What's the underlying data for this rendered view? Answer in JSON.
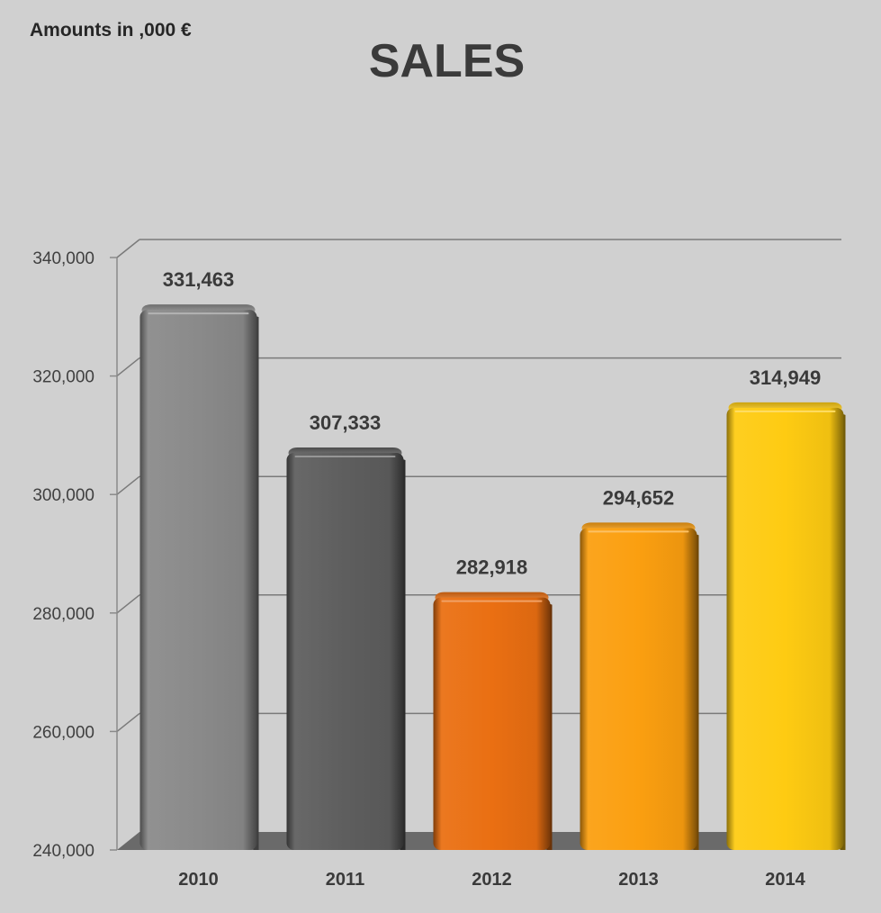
{
  "chart_data": {
    "type": "bar",
    "title": "SALES",
    "subtitle": "Amounts in ,000 €",
    "xlabel": "",
    "ylabel": "",
    "categories": [
      "2010",
      "2011",
      "2012",
      "2013",
      "2014"
    ],
    "values": [
      331463,
      307333,
      282918,
      294652,
      314949
    ],
    "data_labels": [
      "331,463",
      "307,333",
      "282,918",
      "294,652",
      "314,949"
    ],
    "ylim": [
      240000,
      340000
    ],
    "y_ticks": [
      240000,
      260000,
      280000,
      300000,
      320000,
      340000
    ],
    "y_tick_labels": [
      "240,000",
      "260,000",
      "280,000",
      "300,000",
      "320,000",
      "340,000"
    ],
    "grid": true,
    "style": "3d",
    "legend": "none",
    "colors": [
      "#8a8a8a",
      "#5e5e5e",
      "#ea6f12",
      "#fb9f10",
      "#fecb12"
    ]
  }
}
